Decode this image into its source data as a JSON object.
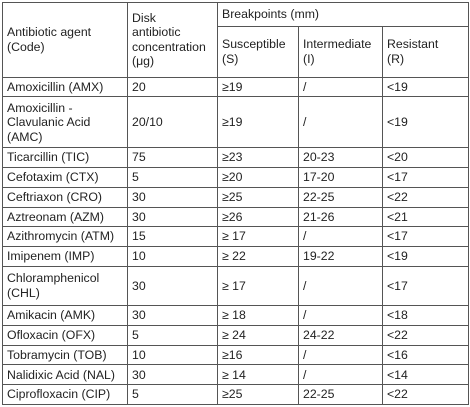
{
  "header": {
    "agent_line1": "Antibiotic agent",
    "agent_line2": "(Code)",
    "disk_line1": "Disk",
    "disk_line2": "antibiotic",
    "disk_line3": "concentration",
    "disk_line4": "(μg)",
    "breakpoints": "Breakpoints (mm)",
    "susceptible_line1": "Susceptible",
    "susceptible_line2": "(S)",
    "intermediate_line1": "Intermediate",
    "intermediate_line2": "(I)",
    "resistant_line1": "Resistant",
    "resistant_line2": "(R)"
  },
  "rows": [
    {
      "agent": "Amoxicillin (AMX)",
      "disk": "20",
      "s": "≥19",
      "i": "/",
      "r": "<19"
    },
    {
      "agent_line1": "Amoxicillin -",
      "agent_line2": "Clavulanic Acid",
      "agent_line3": "(AMC)",
      "disk": "20/10",
      "s": "≥19",
      "i": "/",
      "r": "<19"
    },
    {
      "agent": "Ticarcillin (TIC)",
      "disk": "75",
      "s": "≥23",
      "i": "20-23",
      "r": "<20"
    },
    {
      "agent": "Cefotaxim (CTX)",
      "disk": "5",
      "s": "≥20",
      "i": "17-20",
      "r": "<17"
    },
    {
      "agent": "Ceftriaxon (CRO)",
      "disk": "30",
      "s": "≥25",
      "i": "22-25",
      "r": "<22"
    },
    {
      "agent": "Aztreonam (AZM)",
      "disk": "30",
      "s": "≥26",
      "i": "21-26",
      "r": "<21"
    },
    {
      "agent": "Azithromycin (ATM)",
      "disk": "15",
      "s": "≥ 17",
      "i": "/",
      "r": "<17"
    },
    {
      "agent": "Imipenem (IMP)",
      "disk": "10",
      "s": "≥ 22",
      "i": "19-22",
      "r": "<19"
    },
    {
      "agent_line1": "Chloramphenicol",
      "agent_line2": "(CHL)",
      "disk": "30",
      "s": "≥ 17",
      "i": "/",
      "r": "<17"
    },
    {
      "agent": "Amikacin (AMK)",
      "disk": "30",
      "s": "≥ 18",
      "i": "/",
      "r": "<18"
    },
    {
      "agent": "Ofloxacin (OFX)",
      "disk": "5",
      "s": "≥ 24",
      "i": "24-22",
      "r": "<22"
    },
    {
      "agent": "Tobramycin (TOB)",
      "disk": "10",
      "s": "≥16",
      "i": "/",
      "r": "<16"
    },
    {
      "agent": "Nalidixic Acid (NAL)",
      "disk": "30",
      "s": "≥ 14",
      "i": "/",
      "r": "<14"
    },
    {
      "agent": "Ciprofloxacin (CIP)",
      "disk": "5",
      "s": "≥25",
      "i": "22-25",
      "r": "<22"
    }
  ]
}
